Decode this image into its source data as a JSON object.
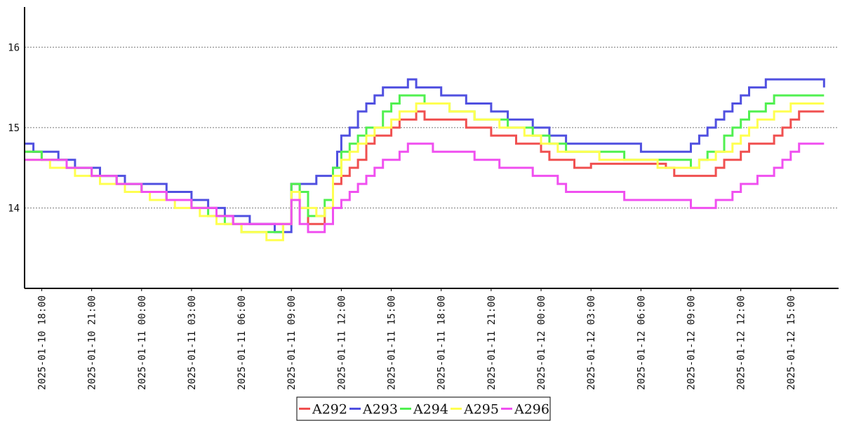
{
  "chart_data": {
    "type": "line",
    "title": "",
    "xlabel": "",
    "ylabel": "",
    "ylim": [
      13,
      16.5
    ],
    "y_ticks": [
      14,
      15,
      16
    ],
    "y_tick_labels": [
      "14",
      "15",
      "16"
    ],
    "x_tick_labels": [
      "2025-01-10 18:00",
      "2025-01-10 21:00",
      "2025-01-11 00:00",
      "2025-01-11 03:00",
      "2025-01-11 06:00",
      "2025-01-11 09:00",
      "2025-01-11 12:00",
      "2025-01-11 15:00",
      "2025-01-11 18:00",
      "2025-01-11 21:00",
      "2025-01-12 00:00",
      "2025-01-12 03:00",
      "2025-01-12 06:00",
      "2025-01-12 09:00",
      "2025-01-12 12:00",
      "2025-01-12 15:00"
    ],
    "x_range": [
      "2025-01-10 16:00",
      "2025-01-12 18:00"
    ],
    "grid": "horizontal-dotted",
    "legend_position": "bottom-center",
    "series": [
      {
        "name": "A292",
        "color": "#f05050",
        "points": [
          [
            "2025-01-10 17:00",
            14.7
          ],
          [
            "2025-01-10 18:00",
            14.6
          ],
          [
            "2025-01-10 19:30",
            14.5
          ],
          [
            "2025-01-10 21:00",
            14.4
          ],
          [
            "2025-01-10 22:30",
            14.3
          ],
          [
            "2025-01-11 00:00",
            14.2
          ],
          [
            "2025-01-11 01:30",
            14.1
          ],
          [
            "2025-01-11 03:00",
            14.0
          ],
          [
            "2025-01-11 04:30",
            13.9
          ],
          [
            "2025-01-11 05:30",
            13.8
          ],
          [
            "2025-01-11 08:30",
            13.8
          ],
          [
            "2025-01-11 09:00",
            14.3
          ],
          [
            "2025-01-11 09:30",
            14.0
          ],
          [
            "2025-01-11 10:00",
            13.8
          ],
          [
            "2025-01-11 11:00",
            14.0
          ],
          [
            "2025-01-11 11:30",
            14.3
          ],
          [
            "2025-01-11 12:00",
            14.4
          ],
          [
            "2025-01-11 12:30",
            14.5
          ],
          [
            "2025-01-11 13:00",
            14.6
          ],
          [
            "2025-01-11 13:30",
            14.8
          ],
          [
            "2025-01-11 14:00",
            14.9
          ],
          [
            "2025-01-11 15:00",
            15.0
          ],
          [
            "2025-01-11 15:30",
            15.1
          ],
          [
            "2025-01-11 16:30",
            15.2
          ],
          [
            "2025-01-11 17:00",
            15.1
          ],
          [
            "2025-01-11 19:30",
            15.0
          ],
          [
            "2025-01-11 21:00",
            14.9
          ],
          [
            "2025-01-11 22:30",
            14.8
          ],
          [
            "2025-01-12 00:00",
            14.7
          ],
          [
            "2025-01-12 00:30",
            14.6
          ],
          [
            "2025-01-12 02:00",
            14.5
          ],
          [
            "2025-01-12 03:00",
            14.55
          ],
          [
            "2025-01-12 07:30",
            14.5
          ],
          [
            "2025-01-12 08:00",
            14.4
          ],
          [
            "2025-01-12 10:30",
            14.5
          ],
          [
            "2025-01-12 11:00",
            14.6
          ],
          [
            "2025-01-12 12:00",
            14.7
          ],
          [
            "2025-01-12 12:30",
            14.8
          ],
          [
            "2025-01-12 14:00",
            14.9
          ],
          [
            "2025-01-12 14:30",
            15.0
          ],
          [
            "2025-01-12 15:00",
            15.1
          ],
          [
            "2025-01-12 15:30",
            15.2
          ],
          [
            "2025-01-12 17:00",
            15.2
          ]
        ]
      },
      {
        "name": "A293",
        "color": "#5050e0",
        "points": [
          [
            "2025-01-10 17:00",
            14.8
          ],
          [
            "2025-01-10 17:30",
            14.7
          ],
          [
            "2025-01-10 19:00",
            14.6
          ],
          [
            "2025-01-10 20:00",
            14.5
          ],
          [
            "2025-01-10 21:30",
            14.4
          ],
          [
            "2025-01-10 23:00",
            14.3
          ],
          [
            "2025-01-11 01:30",
            14.2
          ],
          [
            "2025-01-11 03:00",
            14.1
          ],
          [
            "2025-01-11 04:00",
            14.0
          ],
          [
            "2025-01-11 05:00",
            13.9
          ],
          [
            "2025-01-11 06:30",
            13.8
          ],
          [
            "2025-01-11 08:00",
            13.7
          ],
          [
            "2025-01-11 09:00",
            14.3
          ],
          [
            "2025-01-11 10:30",
            14.4
          ],
          [
            "2025-01-11 11:30",
            14.5
          ],
          [
            "2025-01-11 11:45",
            14.7
          ],
          [
            "2025-01-11 12:00",
            14.9
          ],
          [
            "2025-01-11 12:30",
            15.0
          ],
          [
            "2025-01-11 13:00",
            15.2
          ],
          [
            "2025-01-11 13:30",
            15.3
          ],
          [
            "2025-01-11 14:00",
            15.4
          ],
          [
            "2025-01-11 14:30",
            15.5
          ],
          [
            "2025-01-11 16:00",
            15.6
          ],
          [
            "2025-01-11 16:30",
            15.5
          ],
          [
            "2025-01-11 18:00",
            15.4
          ],
          [
            "2025-01-11 19:30",
            15.3
          ],
          [
            "2025-01-11 21:00",
            15.2
          ],
          [
            "2025-01-11 22:00",
            15.1
          ],
          [
            "2025-01-11 23:30",
            15.0
          ],
          [
            "2025-01-12 00:30",
            14.9
          ],
          [
            "2025-01-12 01:30",
            14.8
          ],
          [
            "2025-01-12 06:00",
            14.7
          ],
          [
            "2025-01-12 09:00",
            14.8
          ],
          [
            "2025-01-12 09:30",
            14.9
          ],
          [
            "2025-01-12 10:00",
            15.0
          ],
          [
            "2025-01-12 10:30",
            15.1
          ],
          [
            "2025-01-12 11:00",
            15.2
          ],
          [
            "2025-01-12 11:30",
            15.3
          ],
          [
            "2025-01-12 12:00",
            15.4
          ],
          [
            "2025-01-12 12:30",
            15.5
          ],
          [
            "2025-01-12 13:30",
            15.6
          ],
          [
            "2025-01-12 17:00",
            15.5
          ]
        ]
      },
      {
        "name": "A294",
        "color": "#50f050",
        "points": [
          [
            "2025-01-10 17:00",
            14.7
          ],
          [
            "2025-01-10 18:00",
            14.6
          ],
          [
            "2025-01-10 19:30",
            14.5
          ],
          [
            "2025-01-10 21:00",
            14.4
          ],
          [
            "2025-01-10 22:30",
            14.3
          ],
          [
            "2025-01-11 00:00",
            14.2
          ],
          [
            "2025-01-11 01:30",
            14.1
          ],
          [
            "2025-01-11 03:00",
            14.0
          ],
          [
            "2025-01-11 04:00",
            13.9
          ],
          [
            "2025-01-11 05:00",
            13.8
          ],
          [
            "2025-01-11 06:00",
            13.7
          ],
          [
            "2025-01-11 08:30",
            13.8
          ],
          [
            "2025-01-11 09:00",
            14.3
          ],
          [
            "2025-01-11 09:30",
            14.2
          ],
          [
            "2025-01-11 10:00",
            13.9
          ],
          [
            "2025-01-11 11:00",
            14.1
          ],
          [
            "2025-01-11 11:30",
            14.5
          ],
          [
            "2025-01-11 12:00",
            14.7
          ],
          [
            "2025-01-11 12:30",
            14.8
          ],
          [
            "2025-01-11 13:00",
            14.9
          ],
          [
            "2025-01-11 13:30",
            15.0
          ],
          [
            "2025-01-11 14:30",
            15.2
          ],
          [
            "2025-01-11 15:00",
            15.3
          ],
          [
            "2025-01-11 15:30",
            15.4
          ],
          [
            "2025-01-11 17:00",
            15.3
          ],
          [
            "2025-01-11 18:30",
            15.2
          ],
          [
            "2025-01-11 20:00",
            15.1
          ],
          [
            "2025-01-11 22:00",
            15.0
          ],
          [
            "2025-01-11 23:30",
            14.9
          ],
          [
            "2025-01-12 00:30",
            14.8
          ],
          [
            "2025-01-12 01:30",
            14.7
          ],
          [
            "2025-01-12 05:00",
            14.6
          ],
          [
            "2025-01-12 09:00",
            14.5
          ],
          [
            "2025-01-12 09:30",
            14.6
          ],
          [
            "2025-01-12 10:00",
            14.7
          ],
          [
            "2025-01-12 11:00",
            14.9
          ],
          [
            "2025-01-12 11:30",
            15.0
          ],
          [
            "2025-01-12 12:00",
            15.1
          ],
          [
            "2025-01-12 12:30",
            15.2
          ],
          [
            "2025-01-12 13:30",
            15.3
          ],
          [
            "2025-01-12 14:00",
            15.4
          ],
          [
            "2025-01-12 17:00",
            15.4
          ]
        ]
      },
      {
        "name": "A295",
        "color": "#ffff50",
        "points": [
          [
            "2025-01-10 17:00",
            14.6
          ],
          [
            "2025-01-10 18:30",
            14.5
          ],
          [
            "2025-01-10 20:00",
            14.4
          ],
          [
            "2025-01-10 21:30",
            14.3
          ],
          [
            "2025-01-10 23:00",
            14.2
          ],
          [
            "2025-01-11 00:30",
            14.1
          ],
          [
            "2025-01-11 02:00",
            14.0
          ],
          [
            "2025-01-11 03:30",
            13.9
          ],
          [
            "2025-01-11 04:30",
            13.8
          ],
          [
            "2025-01-11 06:00",
            13.7
          ],
          [
            "2025-01-11 07:30",
            13.6
          ],
          [
            "2025-01-11 08:30",
            13.8
          ],
          [
            "2025-01-11 09:00",
            14.2
          ],
          [
            "2025-01-11 09:30",
            14.0
          ],
          [
            "2025-01-11 10:30",
            13.9
          ],
          [
            "2025-01-11 11:00",
            14.0
          ],
          [
            "2025-01-11 11:30",
            14.4
          ],
          [
            "2025-01-11 12:00",
            14.6
          ],
          [
            "2025-01-11 12:30",
            14.7
          ],
          [
            "2025-01-11 13:00",
            14.8
          ],
          [
            "2025-01-11 13:30",
            14.9
          ],
          [
            "2025-01-11 14:00",
            15.0
          ],
          [
            "2025-01-11 15:00",
            15.1
          ],
          [
            "2025-01-11 15:30",
            15.2
          ],
          [
            "2025-01-11 16:30",
            15.3
          ],
          [
            "2025-01-11 18:30",
            15.2
          ],
          [
            "2025-01-11 20:00",
            15.1
          ],
          [
            "2025-01-11 21:30",
            15.0
          ],
          [
            "2025-01-11 23:00",
            14.9
          ],
          [
            "2025-01-12 00:00",
            14.8
          ],
          [
            "2025-01-12 01:00",
            14.7
          ],
          [
            "2025-01-12 03:30",
            14.6
          ],
          [
            "2025-01-12 07:00",
            14.5
          ],
          [
            "2025-01-12 09:30",
            14.6
          ],
          [
            "2025-01-12 10:30",
            14.7
          ],
          [
            "2025-01-12 11:30",
            14.8
          ],
          [
            "2025-01-12 12:00",
            14.9
          ],
          [
            "2025-01-12 12:30",
            15.0
          ],
          [
            "2025-01-12 13:00",
            15.1
          ],
          [
            "2025-01-12 14:00",
            15.2
          ],
          [
            "2025-01-12 15:00",
            15.3
          ],
          [
            "2025-01-12 17:00",
            15.3
          ]
        ]
      },
      {
        "name": "A296",
        "color": "#f050f0",
        "points": [
          [
            "2025-01-10 17:00",
            14.6
          ],
          [
            "2025-01-10 18:00",
            14.6
          ],
          [
            "2025-01-10 19:30",
            14.5
          ],
          [
            "2025-01-10 21:00",
            14.4
          ],
          [
            "2025-01-10 22:30",
            14.3
          ],
          [
            "2025-01-11 00:00",
            14.2
          ],
          [
            "2025-01-11 01:30",
            14.1
          ],
          [
            "2025-01-11 03:00",
            14.0
          ],
          [
            "2025-01-11 04:30",
            13.9
          ],
          [
            "2025-01-11 05:30",
            13.8
          ],
          [
            "2025-01-11 08:30",
            13.8
          ],
          [
            "2025-01-11 09:00",
            14.1
          ],
          [
            "2025-01-11 09:30",
            13.8
          ],
          [
            "2025-01-11 10:00",
            13.7
          ],
          [
            "2025-01-11 11:00",
            13.8
          ],
          [
            "2025-01-11 11:30",
            14.0
          ],
          [
            "2025-01-11 12:00",
            14.1
          ],
          [
            "2025-01-11 12:30",
            14.2
          ],
          [
            "2025-01-11 13:00",
            14.3
          ],
          [
            "2025-01-11 13:30",
            14.4
          ],
          [
            "2025-01-11 14:00",
            14.5
          ],
          [
            "2025-01-11 14:30",
            14.6
          ],
          [
            "2025-01-11 15:30",
            14.7
          ],
          [
            "2025-01-11 16:00",
            14.8
          ],
          [
            "2025-01-11 17:30",
            14.7
          ],
          [
            "2025-01-11 20:00",
            14.6
          ],
          [
            "2025-01-11 21:30",
            14.5
          ],
          [
            "2025-01-11 23:30",
            14.4
          ],
          [
            "2025-01-12 01:00",
            14.3
          ],
          [
            "2025-01-12 01:30",
            14.2
          ],
          [
            "2025-01-12 05:00",
            14.1
          ],
          [
            "2025-01-12 08:00",
            14.1
          ],
          [
            "2025-01-12 09:00",
            14.0
          ],
          [
            "2025-01-12 10:00",
            14.0
          ],
          [
            "2025-01-12 10:30",
            14.1
          ],
          [
            "2025-01-12 11:30",
            14.2
          ],
          [
            "2025-01-12 12:00",
            14.3
          ],
          [
            "2025-01-12 13:00",
            14.4
          ],
          [
            "2025-01-12 14:00",
            14.5
          ],
          [
            "2025-01-12 14:30",
            14.6
          ],
          [
            "2025-01-12 15:00",
            14.7
          ],
          [
            "2025-01-12 15:30",
            14.8
          ],
          [
            "2025-01-12 17:00",
            14.8
          ]
        ]
      }
    ]
  }
}
